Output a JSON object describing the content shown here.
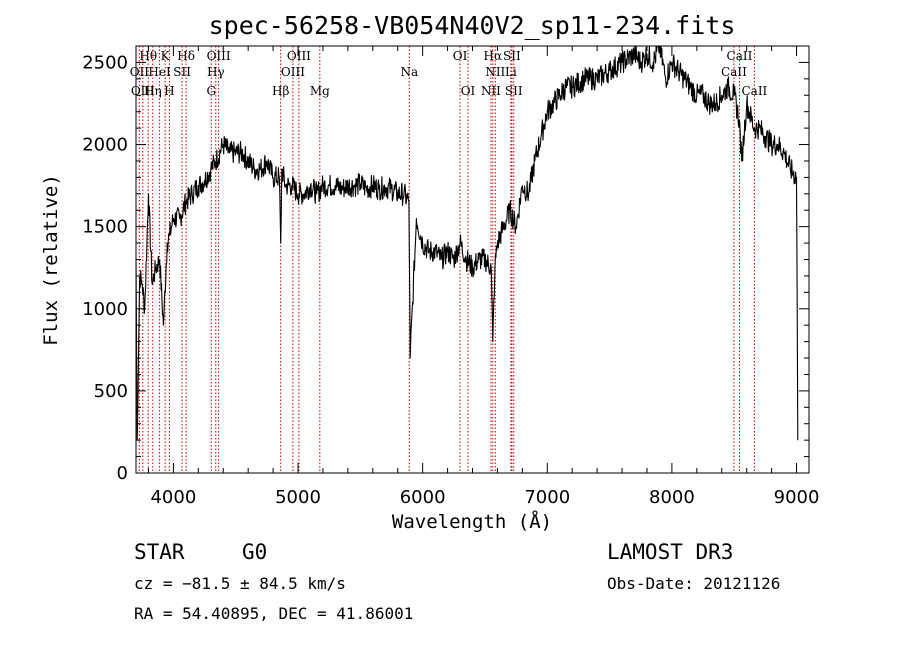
{
  "chart_data": {
    "type": "line",
    "title": "spec-56258-VB054N40V2_sp11-234.fits",
    "xlabel": "Wavelength (Å)",
    "ylabel": "Flux (relative)",
    "xlim": [
      3700,
      9100
    ],
    "ylim": [
      0,
      2600
    ],
    "xticks": [
      4000,
      5000,
      6000,
      7000,
      8000,
      9000
    ],
    "yticks": [
      0,
      500,
      1000,
      1500,
      2000,
      2500
    ],
    "spectrum": {
      "wavelength": [
        3700,
        3710,
        3730,
        3750,
        3770,
        3800,
        3830,
        3860,
        3890,
        3920,
        3950,
        3970,
        4000,
        4050,
        4100,
        4150,
        4200,
        4250,
        4300,
        4340,
        4400,
        4450,
        4500,
        4550,
        4600,
        4650,
        4700,
        4750,
        4800,
        4850,
        4861,
        4870,
        4900,
        4950,
        5000,
        5050,
        5100,
        5150,
        5200,
        5250,
        5300,
        5350,
        5400,
        5450,
        5500,
        5550,
        5600,
        5650,
        5700,
        5750,
        5800,
        5850,
        5890,
        5900,
        5950,
        6000,
        6050,
        6100,
        6150,
        6200,
        6250,
        6300,
        6350,
        6400,
        6450,
        6500,
        6550,
        6563,
        6580,
        6600,
        6650,
        6700,
        6750,
        6800,
        6850,
        6900,
        6950,
        7000,
        7050,
        7100,
        7150,
        7200,
        7300,
        7400,
        7500,
        7600,
        7700,
        7750,
        7800,
        7850,
        7900,
        7950,
        8000,
        8050,
        8100,
        8150,
        8200,
        8250,
        8300,
        8350,
        8400,
        8450,
        8500,
        8540,
        8560,
        8600,
        8660,
        8700,
        8750,
        8800,
        8850,
        8900,
        8950,
        9000,
        9010
      ],
      "flux": [
        1300,
        200,
        1200,
        1150,
        1000,
        1700,
        1150,
        1250,
        1300,
        900,
        1400,
        1450,
        1550,
        1550,
        1650,
        1700,
        1750,
        1780,
        1850,
        1900,
        2000,
        1950,
        1950,
        1950,
        1900,
        1850,
        1850,
        1900,
        1800,
        1800,
        1400,
        1850,
        1750,
        1750,
        1700,
        1700,
        1750,
        1700,
        1750,
        1750,
        1750,
        1730,
        1750,
        1750,
        1760,
        1730,
        1750,
        1730,
        1740,
        1730,
        1700,
        1700,
        1650,
        700,
        1550,
        1400,
        1350,
        1350,
        1300,
        1350,
        1300,
        1400,
        1300,
        1250,
        1300,
        1300,
        1250,
        800,
        1250,
        1400,
        1500,
        1600,
        1500,
        1750,
        1700,
        1900,
        2050,
        2200,
        2250,
        2300,
        2350,
        2350,
        2400,
        2400,
        2450,
        2500,
        2550,
        2500,
        2550,
        2500,
        2600,
        2400,
        2500,
        2450,
        2400,
        2350,
        2300,
        2300,
        2250,
        2250,
        2300,
        2350,
        2300,
        2150,
        1900,
        2250,
        2100,
        2100,
        2050,
        2000,
        2000,
        1950,
        1850,
        1800,
        200
      ]
    },
    "spectral_lines": [
      {
        "name": "Hθ",
        "wavelength": 3798,
        "row": 1
      },
      {
        "name": "OII",
        "wavelength": 3727,
        "row": 2
      },
      {
        "name": "Hη",
        "wavelength": 3835,
        "row": 3
      },
      {
        "name": "OIII",
        "wavelength": 3755,
        "row": 3
      },
      {
        "name": "K",
        "wavelength": 3934,
        "row": 1
      },
      {
        "name": "HeI",
        "wavelength": 3889,
        "row": 2
      },
      {
        "name": "H",
        "wavelength": 3968,
        "row": 3
      },
      {
        "name": "SII",
        "wavelength": 4070,
        "row": 2
      },
      {
        "name": "Hδ",
        "wavelength": 4102,
        "row": 1
      },
      {
        "name": "OIII",
        "wavelength": 4363,
        "row": 1
      },
      {
        "name": "Hγ",
        "wavelength": 4340,
        "row": 2
      },
      {
        "name": "G",
        "wavelength": 4304,
        "row": 3
      },
      {
        "name": "OIII",
        "wavelength": 5007,
        "row": 1
      },
      {
        "name": "OIII",
        "wavelength": 4959,
        "row": 2
      },
      {
        "name": "Hβ",
        "wavelength": 4861,
        "row": 3
      },
      {
        "name": "Mg",
        "wavelength": 5175,
        "row": 3
      },
      {
        "name": "Na",
        "wavelength": 5893,
        "row": 2
      },
      {
        "name": "OI",
        "wavelength": 6300,
        "row": 1
      },
      {
        "name": "OI",
        "wavelength": 6364,
        "row": 3
      },
      {
        "name": "Hα",
        "wavelength": 6563,
        "row": 1
      },
      {
        "name": "SII",
        "wavelength": 6716,
        "row": 1
      },
      {
        "name": "NII",
        "wavelength": 6583,
        "row": 2
      },
      {
        "name": "Li",
        "wavelength": 6708,
        "row": 2
      },
      {
        "name": "NII",
        "wavelength": 6548,
        "row": 3
      },
      {
        "name": "SII",
        "wavelength": 6731,
        "row": 3
      },
      {
        "name": "CaII",
        "wavelength": 8542,
        "row": 1
      },
      {
        "name": "CaII",
        "wavelength": 8498,
        "row": 2
      },
      {
        "name": "CaII",
        "wavelength": 8662,
        "row": 3
      }
    ]
  },
  "info": {
    "class": "STAR",
    "subclass": "G0",
    "survey": "LAMOST DR3",
    "cz": "cz = −81.5 ± 84.5 km/s",
    "obs_date": "Obs-Date: 20121126",
    "coords": "RA =  54.40895, DEC =  41.86001"
  },
  "colors": {
    "spectrum": "#000000",
    "line_marker": "#cc0000",
    "axis": "#000000"
  }
}
